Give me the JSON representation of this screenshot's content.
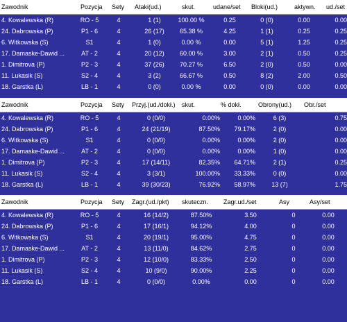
{
  "attack": {
    "headers": [
      "Zawodnik",
      "Pozycja",
      "Sety",
      "Ataki(ud.)",
      "skut.",
      "udane/set",
      "Bloki(ud.)",
      "aktywn.",
      "ud./set"
    ],
    "rows": [
      [
        "4. Kowalewska (R)",
        "RO - 5",
        "4",
        "1 (1)",
        "100.00 %",
        "0.25",
        "0 (0)",
        "0.00",
        "0.00"
      ],
      [
        "24. Dabrowska (P)",
        "P1 - 6",
        "4",
        "26 (17)",
        "65.38 %",
        "4.25",
        "1 (1)",
        "0.25",
        "0.25"
      ],
      [
        "6. Witkowska (S)",
        "S1",
        "4",
        "1 (0)",
        "0.00 %",
        "0.00",
        "5 (1)",
        "1.25",
        "0.25"
      ],
      [
        "17. Damaske-Dawid ...",
        "AT - 2",
        "4",
        "20 (12)",
        "60.00 %",
        "3.00",
        "2 (1)",
        "0.50",
        "0.25"
      ],
      [
        "1. Dimitrova (P)",
        "P2 - 3",
        "4",
        "37 (26)",
        "70.27 %",
        "6.50",
        "2 (0)",
        "0.50",
        "0.00"
      ],
      [
        "11. Lukasik (S)",
        "S2 - 4",
        "4",
        "3 (2)",
        "66.67 %",
        "0.50",
        "8 (2)",
        "2.00",
        "0.50"
      ],
      [
        "18. Garstka (L)",
        "LB - 1",
        "4",
        "0 (0)",
        "0.00 %",
        "0.00",
        "0 (0)",
        "0.00",
        "0.00"
      ]
    ]
  },
  "reception": {
    "headers": [
      "Zawodnik",
      "Pozycja",
      "Sety",
      "Przyj.(ud./dokł.)",
      "skut.",
      "% dokł.",
      "Obrony(ud.)",
      "Obr./set"
    ],
    "rows": [
      [
        "4. Kowalewska (R)",
        "RO - 5",
        "4",
        "0 (0/0)",
        "0.00%",
        "0.00%",
        "6 (3)",
        "0.75"
      ],
      [
        "24. Dabrowska (P)",
        "P1 - 6",
        "4",
        "24 (21/19)",
        "87.50%",
        "79.17%",
        "2 (0)",
        "0.00"
      ],
      [
        "6. Witkowska (S)",
        "S1",
        "4",
        "0 (0/0)",
        "0.00%",
        "0.00%",
        "2 (0)",
        "0.00"
      ],
      [
        "17. Damaske-Dawid ...",
        "AT - 2",
        "4",
        "0 (0/0)",
        "0.00%",
        "0.00%",
        "1 (0)",
        "0.00"
      ],
      [
        "1. Dimitrova (P)",
        "P2 - 3",
        "4",
        "17 (14/11)",
        "82.35%",
        "64.71%",
        "2 (1)",
        "0.25"
      ],
      [
        "11. Lukasik (S)",
        "S2 - 4",
        "4",
        "3 (3/1)",
        "100.00%",
        "33.33%",
        "0 (0)",
        "0.00"
      ],
      [
        "18. Garstka (L)",
        "LB - 1",
        "4",
        "39 (30/23)",
        "76.92%",
        "58.97%",
        "13 (7)",
        "1.75"
      ]
    ]
  },
  "serve": {
    "headers": [
      "Zawodnik",
      "Pozycja",
      "Sety",
      "Zagr.(ud./pkt)",
      "skuteczn.",
      "Zagr.ud./set",
      "Asy",
      "Asy/set"
    ],
    "rows": [
      [
        "4. Kowalewska (R)",
        "RO - 5",
        "4",
        "16 (14/2)",
        "87.50%",
        "3.50",
        "0",
        "0.00"
      ],
      [
        "24. Dabrowska (P)",
        "P1 - 6",
        "4",
        "17 (16/1)",
        "94.12%",
        "4.00",
        "0",
        "0.00"
      ],
      [
        "6. Witkowska (S)",
        "S1",
        "4",
        "20 (19/1)",
        "95.00%",
        "4.75",
        "0",
        "0.00"
      ],
      [
        "17. Damaske-Dawid ...",
        "AT - 2",
        "4",
        "13 (11/0)",
        "84.62%",
        "2.75",
        "0",
        "0.00"
      ],
      [
        "1. Dimitrova (P)",
        "P2 - 3",
        "4",
        "12 (10/0)",
        "83.33%",
        "2.50",
        "0",
        "0.00"
      ],
      [
        "11. Lukasik (S)",
        "S2 - 4",
        "4",
        "10 (9/0)",
        "90.00%",
        "2.25",
        "0",
        "0.00"
      ],
      [
        "18. Garstka (L)",
        "LB - 1",
        "4",
        "0 (0/0)",
        "0.00%",
        "0.00",
        "0",
        "0.00"
      ]
    ]
  }
}
